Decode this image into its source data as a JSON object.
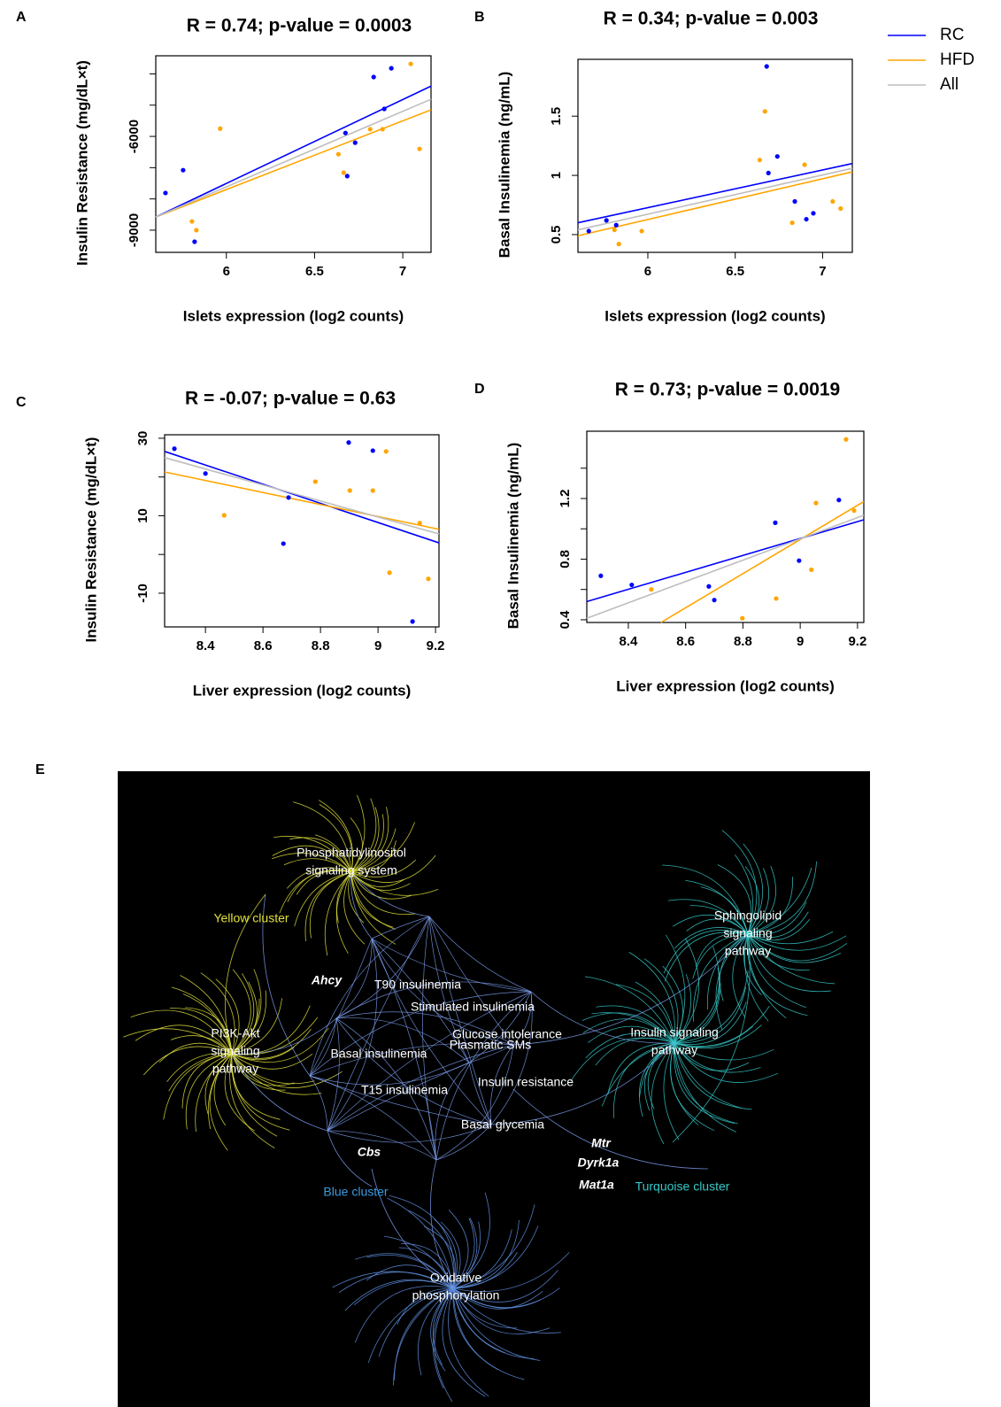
{
  "figure": {
    "legend": [
      {
        "name": "RC",
        "color": "#0000ff"
      },
      {
        "name": "HFD",
        "color": "#ffa500"
      },
      {
        "name": "All",
        "color": "#bebebe"
      }
    ]
  },
  "chart_data": [
    {
      "type": "scatter",
      "panel": "A",
      "title": "R = 0.74; p-value = 0.0003",
      "x_label": "Islets expression (log2 counts)",
      "y_label": "Insulin Resistance (mg/dL×t)",
      "xlim": [
        5.6,
        7.16
      ],
      "ylim": [
        -9710,
        -3420
      ],
      "xticks": [
        6.0,
        6.5,
        7.0
      ],
      "yticks": [
        -9000,
        -6000
      ],
      "minor_yticks": [
        -8000,
        -7000,
        -5000,
        -4000
      ],
      "series": [
        {
          "color": "#0000ff",
          "x": [
            5.655,
            5.755,
            5.82,
            6.675,
            6.685,
            6.73,
            6.835,
            6.895,
            6.935
          ],
          "values": [
            -7810,
            -7080,
            -9370,
            -5890,
            -7270,
            -6200,
            -4100,
            -5120,
            -3820
          ]
        },
        {
          "color": "#ffa500",
          "x": [
            5.805,
            5.83,
            5.965,
            6.635,
            6.665,
            6.815,
            6.885,
            7.045,
            7.095
          ],
          "values": [
            -8720,
            -9000,
            -5750,
            -6570,
            -7160,
            -5770,
            -5770,
            -3680,
            -6400
          ]
        }
      ],
      "fits": [
        {
          "color": "#0000ff",
          "x": [
            5.6,
            7.16
          ],
          "values": [
            -8580,
            -4390
          ]
        },
        {
          "color": "#ffa500",
          "x": [
            5.6,
            7.16
          ],
          "values": [
            -8580,
            -5150
          ]
        },
        {
          "color": "#bebebe",
          "x": [
            5.6,
            7.16
          ],
          "values": [
            -8580,
            -4810
          ]
        }
      ]
    },
    {
      "type": "scatter",
      "panel": "B",
      "title": "R = 0.34; p-value = 0.003",
      "x_label": "Islets expression (log2 counts)",
      "y_label": "Basal Insulinemia (ng/mL)",
      "xlim": [
        5.6,
        7.17
      ],
      "ylim": [
        0.35,
        1.98
      ],
      "xticks": [
        6.0,
        6.5,
        7.0
      ],
      "yticks": [
        0.5,
        1.0,
        1.5
      ],
      "series": [
        {
          "color": "#0000ff",
          "x": [
            5.662,
            5.763,
            5.819,
            6.68,
            6.69,
            6.741,
            6.841,
            6.907,
            6.947
          ],
          "values": [
            0.53,
            0.62,
            0.58,
            1.92,
            1.02,
            1.16,
            0.78,
            0.63,
            0.68
          ]
        },
        {
          "color": "#ffa500",
          "x": [
            5.809,
            5.834,
            5.965,
            6.64,
            6.67,
            6.897,
            6.826,
            7.058,
            7.103
          ],
          "values": [
            0.54,
            0.42,
            0.53,
            1.13,
            1.54,
            1.09,
            0.6,
            0.78,
            0.72
          ]
        }
      ],
      "fits": [
        {
          "color": "#0000ff",
          "x": [
            5.6,
            7.17
          ],
          "values": [
            0.6,
            1.1
          ]
        },
        {
          "color": "#ffa500",
          "x": [
            5.6,
            7.17
          ],
          "values": [
            0.49,
            1.03
          ]
        },
        {
          "color": "#bebebe",
          "x": [
            5.6,
            7.17
          ],
          "values": [
            0.54,
            1.06
          ]
        }
      ]
    },
    {
      "type": "scatter",
      "panel": "C",
      "title": "R = -0.07; p-value = 0.63",
      "x_label": "Liver expression (log2 counts)",
      "y_label": "Insulin Resistance (mg/dL×t)",
      "xlim": [
        8.258,
        9.212
      ],
      "ylim": [
        -18.7,
        30.9
      ],
      "xticks": [
        8.4,
        8.6,
        8.8,
        9.0,
        9.2
      ],
      "yticks": [
        -10,
        10,
        30
      ],
      "minor_yticks": [
        0,
        20
      ],
      "series": [
        {
          "color": "#0000ff",
          "x": [
            8.292,
            8.4,
            8.689,
            8.671,
            8.898,
            8.982,
            9.12
          ],
          "values": [
            27.3,
            20.9,
            14.7,
            2.8,
            28.9,
            26.8,
            -17.3
          ]
        },
        {
          "color": "#ffa500",
          "x": [
            8.465,
            8.782,
            8.902,
            8.982,
            9.028,
            9.04,
            9.145,
            9.175
          ],
          "values": [
            10.1,
            18.8,
            16.5,
            16.5,
            26.6,
            -4.7,
            8.1,
            -6.3
          ]
        }
      ],
      "fits": [
        {
          "color": "#0000ff",
          "x": [
            8.258,
            9.212
          ],
          "values": [
            26.6,
            3.0
          ]
        },
        {
          "color": "#ffa500",
          "x": [
            8.258,
            9.212
          ],
          "values": [
            21.3,
            6.5
          ]
        },
        {
          "color": "#bebebe",
          "x": [
            8.258,
            9.212
          ],
          "values": [
            25.0,
            5.3
          ]
        }
      ]
    },
    {
      "type": "scatter",
      "panel": "D",
      "title": "R = 0.73; p-value = 0.0019",
      "x_label": "Liver expression (log2 counts)",
      "y_label": "Basal Insulinemia (ng/mL)",
      "xlim": [
        8.255,
        9.222
      ],
      "ylim": [
        0.382,
        1.644
      ],
      "xticks": [
        8.4,
        8.6,
        8.8,
        9.0,
        9.2
      ],
      "yticks": [
        0.4,
        0.8,
        1.2
      ],
      "minor_yticks": [
        0.6,
        1.0,
        1.4
      ],
      "series": [
        {
          "color": "#0000ff",
          "x": [
            8.304,
            8.412,
            8.681,
            8.7,
            8.913,
            8.996,
            9.135
          ],
          "values": [
            0.69,
            0.63,
            0.62,
            0.53,
            1.04,
            0.79,
            1.19
          ]
        },
        {
          "color": "#ffa500",
          "x": [
            8.48,
            8.798,
            8.916,
            9.039,
            9.055,
            9.16,
            9.188
          ],
          "values": [
            0.6,
            0.41,
            0.54,
            0.73,
            1.17,
            1.59,
            1.12
          ]
        }
      ],
      "fits": [
        {
          "color": "#0000ff",
          "x": [
            8.255,
            9.222
          ],
          "values": [
            0.52,
            1.06
          ]
        },
        {
          "color": "#ffa500",
          "x": [
            8.514,
            9.222
          ],
          "values": [
            0.382,
            1.18
          ]
        },
        {
          "color": "#bebebe",
          "x": [
            8.255,
            9.222
          ],
          "values": [
            0.41,
            1.09
          ]
        }
      ]
    }
  ],
  "network": {
    "panel": "E",
    "pathways": [
      [
        "Phosphatidylinositol",
        "signaling system"
      ],
      [
        "Sphingolipid",
        "signaling",
        "pathway"
      ],
      [
        "PI3K-Akt",
        "signaling",
        "pathway"
      ],
      [
        "Insulin signaling",
        "pathway"
      ],
      [
        "Oxidative",
        "phosphorylation"
      ]
    ],
    "phenotypes": [
      "T90 insulinemia",
      "Stimulated insulinemia",
      "Glucose intolerance",
      "Plasmatic SMs",
      "Basal insulinemia",
      "Insulin resistance",
      "T15 insulinemia",
      "Basal glycemia"
    ],
    "genes": [
      "Ahcy",
      "Cbs",
      "Mtr",
      "Dyrk1a",
      "Mat1a"
    ],
    "clusters": [
      {
        "name": "Yellow cluster",
        "color": "#e2e23c"
      },
      {
        "name": "Blue cluster",
        "color": "#3d9be0"
      },
      {
        "name": "Turquoise cluster",
        "color": "#35c8c8"
      }
    ]
  }
}
